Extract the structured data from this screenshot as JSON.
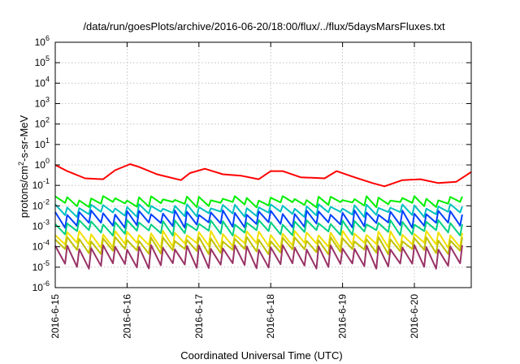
{
  "chart_data": {
    "type": "line",
    "title": "/data/run/goesPlots/archive/2016-06-20/18:00/flux/../flux/5daysMarsFluxes.txt",
    "xlabel": "Coordinated Universal Time (UTC)",
    "ylabel_parts": [
      "protons/cm",
      "2",
      "-s-sr-MeV"
    ],
    "yscale": "log",
    "grid": true,
    "xlim": [
      "2016-06-15",
      "2016-06-20 19:00"
    ],
    "ylim": [
      1e-06,
      1000000.0
    ],
    "x_ticks": [
      "2016-6-15",
      "2016-6-16",
      "2016-6-17",
      "2016-6-18",
      "2016-6-19",
      "2016-6-20"
    ],
    "y_ticks": [
      -6,
      -5,
      -4,
      -3,
      -2,
      -1,
      0,
      1,
      2,
      3,
      4,
      5,
      6
    ],
    "sawtooth_period_hours": 4,
    "series": [
      {
        "color": "#ff0000",
        "values": [
          [
            "2016-06-15 00:00",
            1.0
          ],
          [
            "2016-06-15 04:00",
            0.5
          ],
          [
            "2016-06-15 10:00",
            0.22
          ],
          [
            "2016-06-15 16:00",
            0.2
          ],
          [
            "2016-06-15 20:00",
            0.55
          ],
          [
            "2016-06-16 01:00",
            1.1
          ],
          [
            "2016-06-16 04:00",
            0.8
          ],
          [
            "2016-06-16 10:00",
            0.35
          ],
          [
            "2016-06-16 18:00",
            0.18
          ],
          [
            "2016-06-16 21:00",
            0.4
          ],
          [
            "2016-06-17 02:00",
            0.65
          ],
          [
            "2016-06-17 08:00",
            0.35
          ],
          [
            "2016-06-17 14:00",
            0.3
          ],
          [
            "2016-06-17 20:00",
            0.2
          ],
          [
            "2016-06-18 00:00",
            0.5
          ],
          [
            "2016-06-18 04:00",
            0.5
          ],
          [
            "2016-06-18 10:00",
            0.25
          ],
          [
            "2016-06-18 18:00",
            0.22
          ],
          [
            "2016-06-18 22:00",
            0.5
          ],
          [
            "2016-06-19 04:00",
            0.25
          ],
          [
            "2016-06-19 10:00",
            0.13
          ],
          [
            "2016-06-19 14:00",
            0.09
          ],
          [
            "2016-06-19 20:00",
            0.18
          ],
          [
            "2016-06-20 02:00",
            0.2
          ],
          [
            "2016-06-20 08:00",
            0.13
          ],
          [
            "2016-06-20 14:00",
            0.15
          ],
          [
            "2016-06-20 19:00",
            0.45
          ]
        ]
      },
      {
        "color": "#00ee00",
        "range": [
          0.012,
          0.03
        ]
      },
      {
        "color": "#00c0c0",
        "range": [
          0.004,
          0.012
        ]
      },
      {
        "color": "#0040ff",
        "range": [
          0.0012,
          0.006
        ]
      },
      {
        "color": "#00d080",
        "range": [
          0.0005,
          0.002
        ]
      },
      {
        "color": "#f0e000",
        "range": [
          0.00012,
          0.0006
        ]
      },
      {
        "color": "#c0c000",
        "range": [
          6e-05,
          0.0003
        ]
      },
      {
        "color": "#993366",
        "range": [
          1.2e-05,
          0.00012
        ]
      }
    ]
  }
}
